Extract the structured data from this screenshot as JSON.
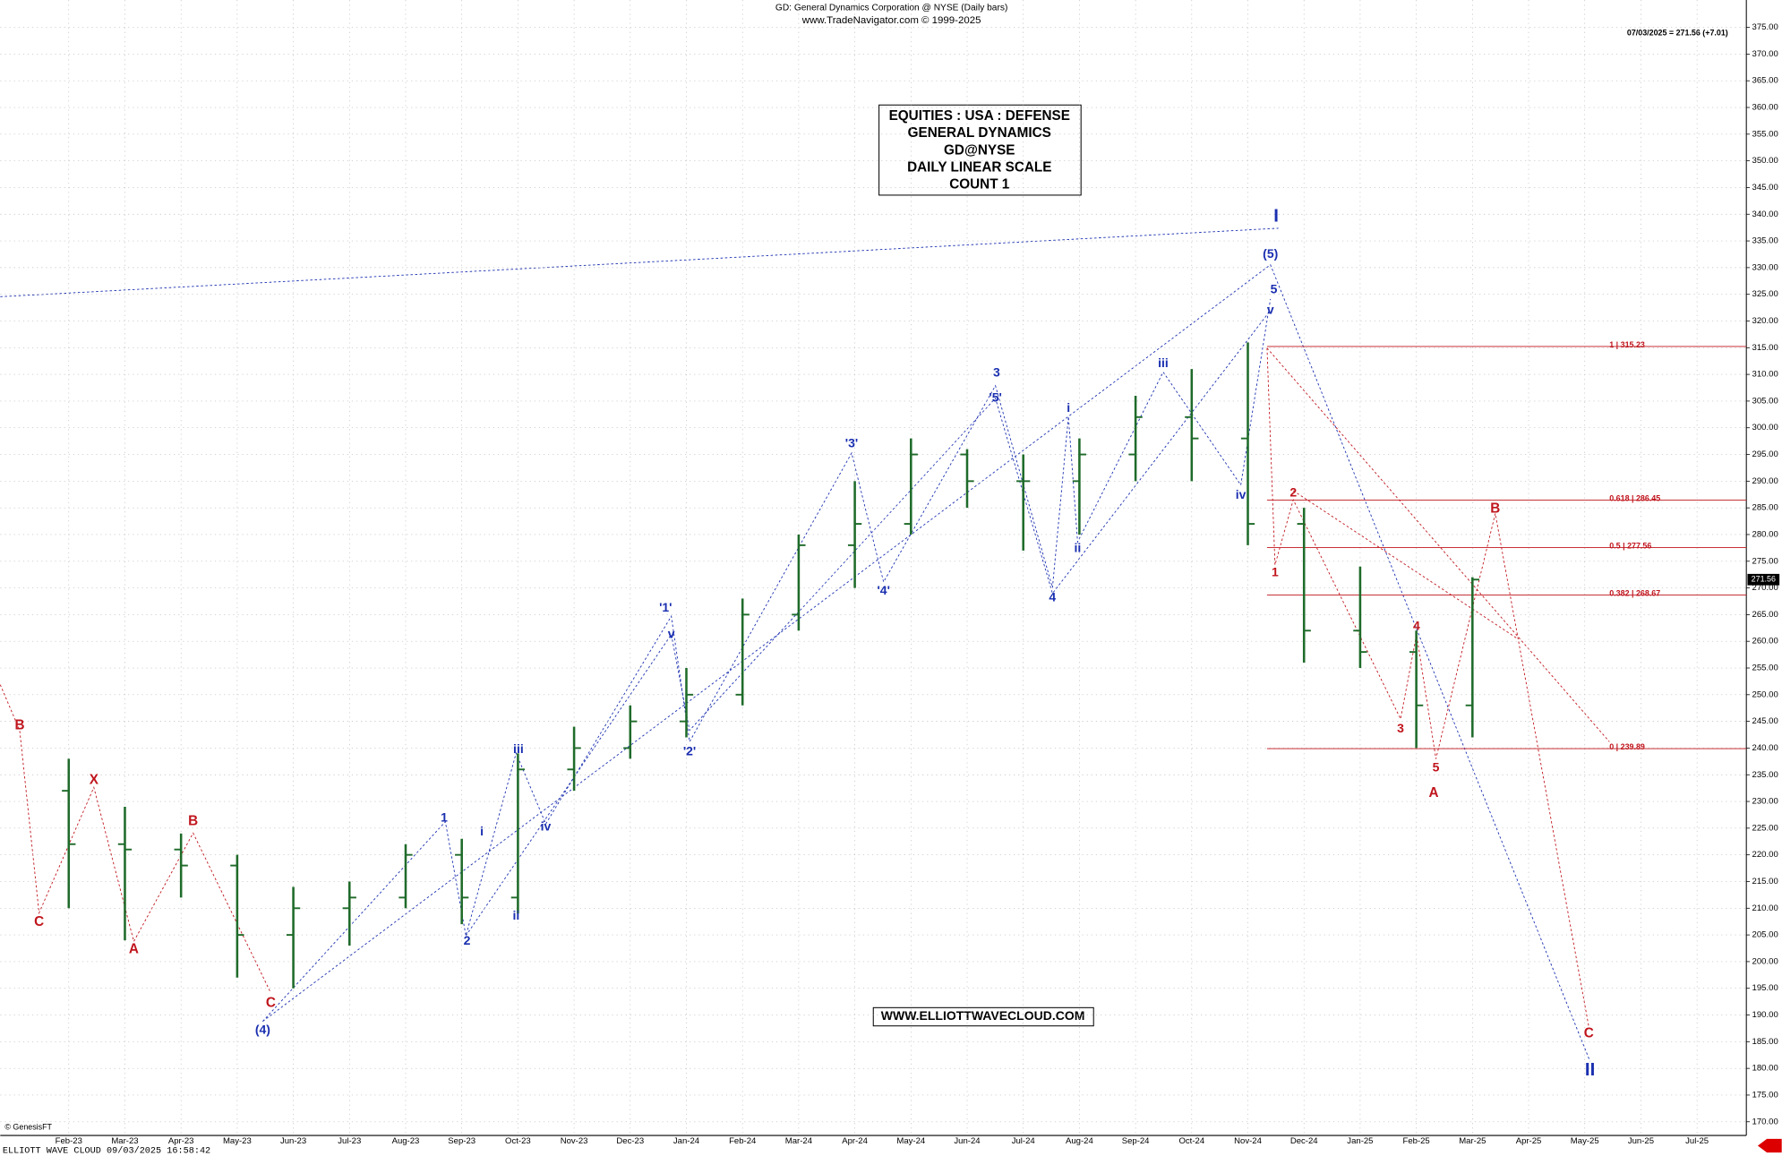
{
  "chart_data": {
    "type": "ohlc",
    "title": "GD:  General Dynamics Corporation @ NYSE  (Daily bars)",
    "subtitle": "www.TradeNavigator.com © 1999-2025",
    "last_quote": "07/03/2025 = 271.56 (+7.01)",
    "last_price": {
      "value": 271.56,
      "label": "271.56"
    },
    "info_box": [
      "EQUITIES : USA : DEFENSE",
      "GENERAL DYNAMICS",
      "GD@NYSE",
      "DAILY LINEAR SCALE",
      "COUNT 1"
    ],
    "website": "WWW.ELLIOTTWAVECLOUD.COM",
    "source": "© GenesisFT",
    "footer": "ELLIOTT WAVE CLOUD   09/03/2025 16:58:42",
    "color": "#1f6b2a",
    "grid": true,
    "categories": [
      "Feb-23",
      "Mar-23",
      "Apr-23",
      "May-23",
      "Jun-23",
      "Jul-23",
      "Aug-23",
      "Sep-23",
      "Oct-23",
      "Nov-23",
      "Dec-23",
      "Jan-24",
      "Feb-24",
      "Mar-24",
      "Apr-24",
      "May-24",
      "Jun-24",
      "Jul-24",
      "Aug-24",
      "Sep-24",
      "Oct-24",
      "Nov-24",
      "Dec-24",
      "Jan-25",
      "Feb-25",
      "Mar-25",
      "Apr-25",
      "May-25",
      "Jun-25",
      "Jul-25"
    ],
    "values": [
      [
        232,
        238,
        210,
        222
      ],
      [
        222,
        229,
        204,
        221
      ],
      [
        221,
        224,
        212,
        218
      ],
      [
        218,
        220,
        197,
        205
      ],
      [
        205,
        214,
        195,
        210
      ],
      [
        210,
        215,
        203,
        212
      ],
      [
        212,
        222,
        210,
        220
      ],
      [
        220,
        223,
        207,
        212
      ],
      [
        212,
        239,
        209,
        236
      ],
      [
        236,
        244,
        232,
        240
      ],
      [
        240,
        248,
        238,
        245
      ],
      [
        245,
        255,
        242,
        250
      ],
      [
        250,
        268,
        248,
        265
      ],
      [
        265,
        280,
        262,
        278
      ],
      [
        278,
        290,
        270,
        282
      ],
      [
        282,
        298,
        280,
        295
      ],
      [
        295,
        296,
        285,
        290
      ],
      [
        290,
        295,
        277,
        290
      ],
      [
        290,
        298,
        280,
        295
      ],
      [
        295,
        306,
        290,
        302
      ],
      [
        302,
        311,
        290,
        298
      ],
      [
        298,
        316,
        278,
        282
      ],
      [
        282,
        285,
        256,
        262
      ],
      [
        262,
        274,
        255,
        258
      ],
      [
        258,
        262,
        240,
        248
      ],
      [
        248,
        272,
        242,
        271.56
      ],
      null,
      null,
      null,
      null
    ],
    "ylim": [
      170,
      375
    ],
    "yticks": [
      {
        "value": 170,
        "label": "170.00"
      },
      {
        "value": 175,
        "label": "175.00"
      },
      {
        "value": 180,
        "label": "180.00"
      },
      {
        "value": 185,
        "label": "185.00"
      },
      {
        "value": 190,
        "label": "190.00"
      },
      {
        "value": 195,
        "label": "195.00"
      },
      {
        "value": 200,
        "label": "200.00"
      },
      {
        "value": 205,
        "label": "205.00"
      },
      {
        "value": 210,
        "label": "210.00"
      },
      {
        "value": 215,
        "label": "215.00"
      },
      {
        "value": 220,
        "label": "220.00"
      },
      {
        "value": 225,
        "label": "225.00"
      },
      {
        "value": 230,
        "label": "230.00"
      },
      {
        "value": 235,
        "label": "235.00"
      },
      {
        "value": 240,
        "label": "240.00"
      },
      {
        "value": 245,
        "label": "245.00"
      },
      {
        "value": 250,
        "label": "250.00"
      },
      {
        "value": 255,
        "label": "255.00"
      },
      {
        "value": 260,
        "label": "260.00"
      },
      {
        "value": 265,
        "label": "265.00"
      },
      {
        "value": 270,
        "label": "270.00"
      },
      {
        "value": 275,
        "label": "275.00"
      },
      {
        "value": 280,
        "label": "280.00"
      },
      {
        "value": 285,
        "label": "285.00"
      },
      {
        "value": 290,
        "label": "290.00"
      },
      {
        "value": 295,
        "label": "295.00"
      },
      {
        "value": 300,
        "label": "300.00"
      },
      {
        "value": 305,
        "label": "305.00"
      },
      {
        "value": 310,
        "label": "310.00"
      },
      {
        "value": 315,
        "label": "315.00"
      },
      {
        "value": 320,
        "label": "320.00"
      },
      {
        "value": 325,
        "label": "325.00"
      },
      {
        "value": 330,
        "label": "330.00"
      },
      {
        "value": 335,
        "label": "335.00"
      },
      {
        "value": 340,
        "label": "340.00"
      },
      {
        "value": 345,
        "label": "345.00"
      },
      {
        "value": 350,
        "label": "350.00"
      },
      {
        "value": 355,
        "label": "355.00"
      },
      {
        "value": 360,
        "label": "360.00"
      },
      {
        "value": 365,
        "label": "365.00"
      },
      {
        "value": 370,
        "label": "370.00"
      },
      {
        "value": 375,
        "label": "375.00"
      }
    ],
    "fib_levels": [
      {
        "value": 315.23,
        "label": "1 | 315.23"
      },
      {
        "value": 286.45,
        "label": "0.618 | 286.45"
      },
      {
        "value": 277.56,
        "label": "0.5 | 277.56"
      },
      {
        "value": 268.67,
        "label": "0.382 | 268.67"
      },
      {
        "value": 239.89,
        "label": "0 | 239.89"
      }
    ],
    "annotations": [
      "I",
      "(5)",
      "5",
      "v",
      "iii",
      "iv",
      "3",
      "'5'",
      "i",
      "ii",
      "4",
      "'3'",
      "'4'",
      "'1'",
      "v",
      "'2'",
      "iii",
      "iv",
      "1",
      "i",
      "2",
      "ii",
      "(4)",
      "II",
      "B",
      "C",
      "X",
      "A",
      "B",
      "C",
      "1",
      "2",
      "3",
      "4",
      "5",
      "A",
      "B",
      "C"
    ]
  }
}
